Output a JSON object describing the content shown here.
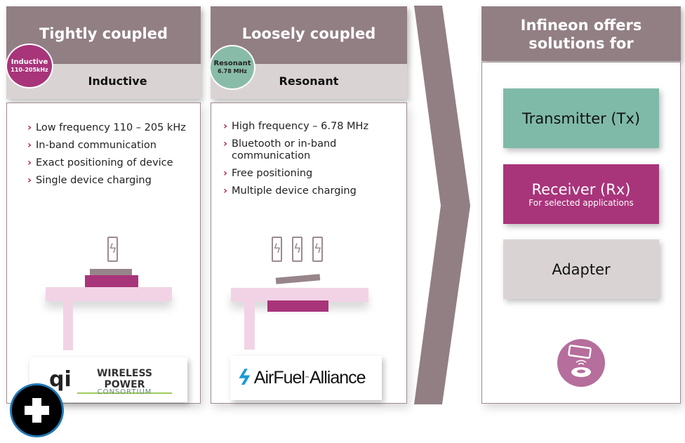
{
  "columns": [
    {
      "title": "Tightly coupled",
      "badge_title": "Inductive",
      "badge_sub": "110-205kHz",
      "subtitle": "Inductive",
      "bullets": [
        "Low frequency 110 – 205 kHz",
        "In-band communication",
        "Exact positioning of device",
        "Single device charging"
      ],
      "logo": {
        "main": "WIRELESS POWER",
        "sub": "CONSORTIUM",
        "mark": "qi"
      }
    },
    {
      "title": "Loosely coupled",
      "badge_title": "Resonant",
      "badge_sub": "6.78 MHz",
      "subtitle": "Resonant",
      "bullets": [
        "High frequency – 6.78 MHz",
        "Bluetooth or in-band communication",
        "Free positioning",
        "Multiple device charging"
      ],
      "logo": {
        "main": "AirFuel",
        "tm": "™",
        "sub": "Alliance"
      }
    }
  ],
  "solutions": {
    "title": "Infineon offers solutions for",
    "items": [
      {
        "label": "Transmitter (Tx)",
        "color": "#7fbaa9"
      },
      {
        "label": "Receiver (Rx)",
        "note": "For selected applications",
        "color": "#a8347a"
      },
      {
        "label": "Adapter",
        "color": "#dad3d4"
      }
    ]
  },
  "colors": {
    "header": "#927f84",
    "magenta": "#a8347a",
    "teal": "#88bca9",
    "pink": "#f2d3e6"
  },
  "icons": [
    "battery-icon",
    "wireless-charging-icon",
    "plus-icon"
  ]
}
